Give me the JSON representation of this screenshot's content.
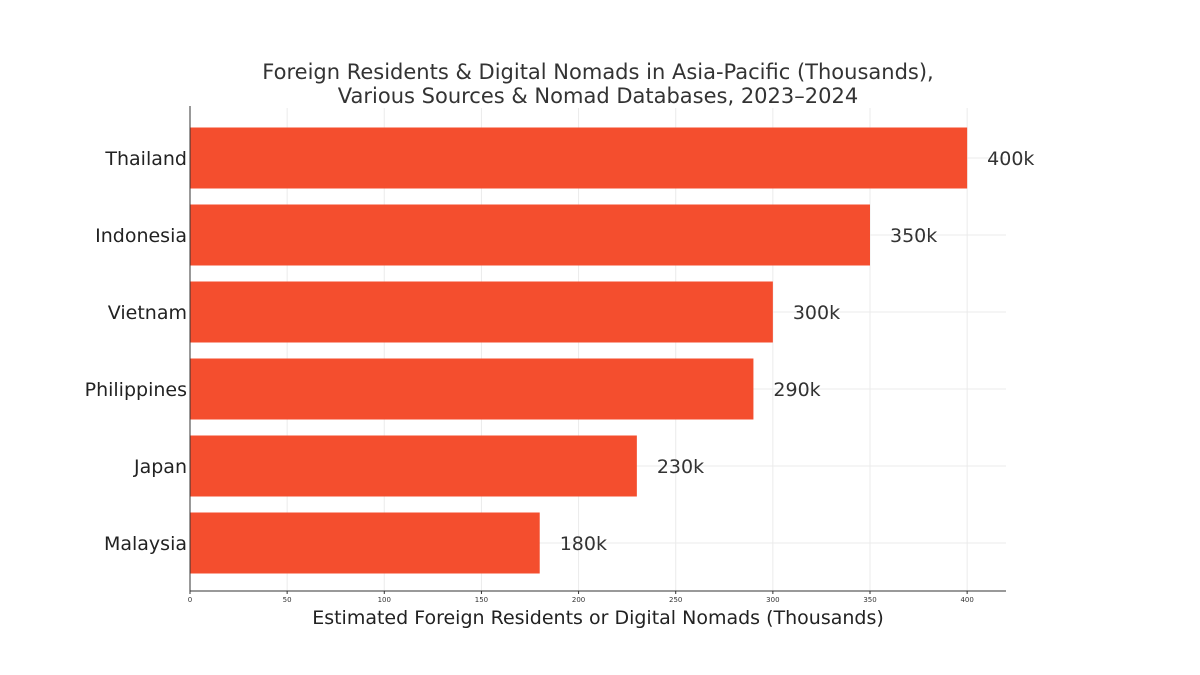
{
  "chart_data": {
    "type": "bar",
    "orientation": "horizontal",
    "title": "Foreign Residents & Digital Nomads in Asia-Pacific (Thousands),",
    "subtitle": "Various Sources & Nomad Databases, 2023–2024",
    "xlabel": "Estimated Foreign Residents or Digital Nomads (Thousands)",
    "ylabel": "",
    "categories": [
      "Thailand",
      "Indonesia",
      "Vietnam",
      "Philippines",
      "Japan",
      "Malaysia"
    ],
    "values": [
      400,
      350,
      300,
      290,
      230,
      180
    ],
    "data_labels": [
      "400k",
      "350k",
      "300k",
      "290k",
      "230k",
      "180k"
    ],
    "xlim": [
      0,
      420
    ],
    "xticks": [
      0,
      50,
      100,
      150,
      200,
      250,
      300,
      350,
      400
    ],
    "grid": true,
    "legend": "none",
    "colors": {
      "bar": "#F44E2E",
      "grid": "#EBEBEB",
      "axis": "#333333",
      "text": "#333333"
    }
  }
}
